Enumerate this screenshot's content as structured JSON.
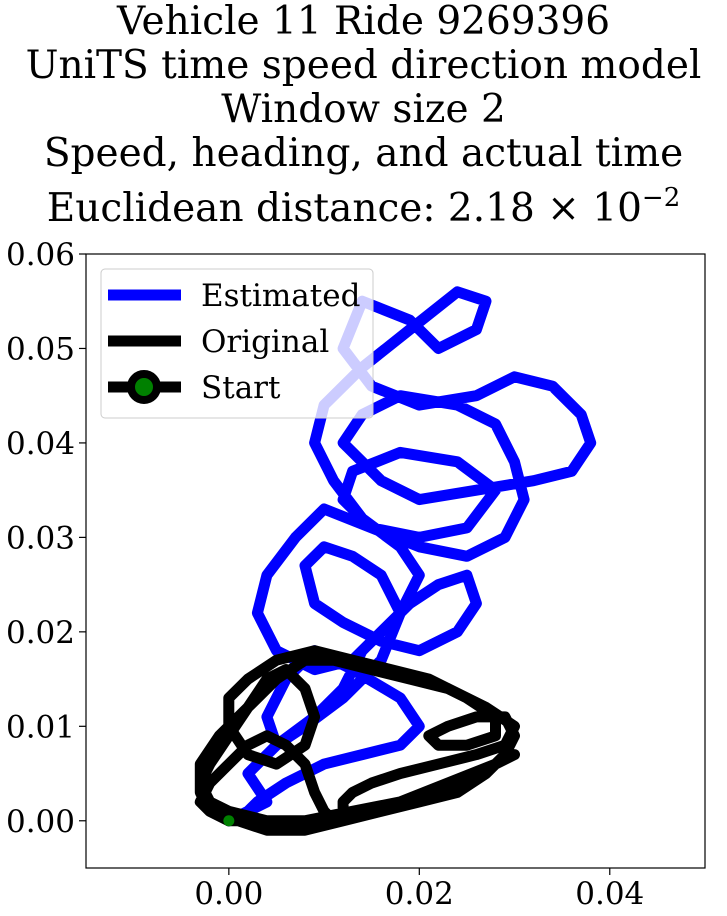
{
  "chart_data": {
    "type": "line",
    "title_lines": [
      "Vehicle 11 Ride 9269396",
      "UniTS time speed direction model",
      "Window size 2",
      "Speed, heading, and actual time"
    ],
    "distance_label": "Euclidean distance:",
    "distance_mantissa": "2.18",
    "distance_times": "×",
    "distance_base": "10",
    "distance_exponent": "−2",
    "xlim": [
      -0.015,
      0.05
    ],
    "ylim": [
      -0.005,
      0.06
    ],
    "xticks": [
      0.0,
      0.02,
      0.04
    ],
    "xtick_labels": [
      "0.00",
      "0.02",
      "0.04"
    ],
    "yticks": [
      0.0,
      0.01,
      0.02,
      0.03,
      0.04,
      0.05,
      0.06
    ],
    "ytick_labels": [
      "0.00",
      "0.01",
      "0.02",
      "0.03",
      "0.04",
      "0.05",
      "0.06"
    ],
    "grid": false,
    "legend_position": "top-left",
    "series": [
      {
        "name": "Estimated",
        "color": "#0000ff",
        "x": [
          0.0,
          0.004,
          0.002,
          0.005,
          0.009,
          0.012,
          0.014,
          0.018,
          0.02,
          0.018,
          0.014,
          0.011,
          0.009,
          0.01,
          0.014,
          0.019,
          0.024,
          0.027,
          0.026,
          0.022,
          0.019,
          0.014,
          0.012,
          0.015,
          0.02,
          0.026,
          0.03,
          0.034,
          0.037,
          0.038,
          0.036,
          0.032,
          0.026,
          0.02,
          0.016,
          0.012,
          0.014,
          0.018,
          0.024,
          0.028,
          0.03,
          0.031,
          0.029,
          0.025,
          0.02,
          0.015,
          0.012,
          0.013,
          0.018,
          0.024,
          0.028,
          0.025,
          0.02,
          0.015,
          0.01,
          0.007,
          0.004,
          0.003,
          0.005,
          0.009,
          0.013,
          0.016,
          0.019,
          0.022,
          0.025,
          0.026,
          0.024,
          0.02,
          0.016,
          0.012,
          0.009,
          0.008,
          0.01,
          0.013,
          0.016,
          0.018,
          0.016,
          0.012,
          0.008,
          0.005,
          0.004,
          0.006,
          0.009,
          0.013,
          0.018,
          0.02,
          0.018,
          0.014,
          0.01,
          0.006,
          0.003,
          0.002
        ],
        "y": [
          0.0,
          0.002,
          0.005,
          0.008,
          0.011,
          0.014,
          0.018,
          0.022,
          0.026,
          0.029,
          0.032,
          0.036,
          0.04,
          0.044,
          0.048,
          0.052,
          0.056,
          0.055,
          0.052,
          0.05,
          0.053,
          0.055,
          0.05,
          0.046,
          0.044,
          0.045,
          0.047,
          0.046,
          0.043,
          0.04,
          0.037,
          0.036,
          0.035,
          0.034,
          0.036,
          0.04,
          0.043,
          0.045,
          0.044,
          0.042,
          0.038,
          0.034,
          0.03,
          0.028,
          0.029,
          0.031,
          0.034,
          0.037,
          0.039,
          0.038,
          0.035,
          0.031,
          0.03,
          0.031,
          0.033,
          0.03,
          0.026,
          0.022,
          0.018,
          0.016,
          0.017,
          0.02,
          0.023,
          0.025,
          0.026,
          0.023,
          0.02,
          0.018,
          0.019,
          0.021,
          0.023,
          0.027,
          0.029,
          0.028,
          0.026,
          0.022,
          0.017,
          0.013,
          0.01,
          0.008,
          0.011,
          0.015,
          0.018,
          0.016,
          0.013,
          0.01,
          0.008,
          0.007,
          0.006,
          0.004,
          0.002,
          0.001
        ]
      },
      {
        "name": "Original",
        "color": "#000000",
        "x": [
          0.0,
          -0.002,
          -0.003,
          -0.003,
          -0.001,
          0.002,
          0.005,
          0.008,
          0.011,
          0.015,
          0.019,
          0.023,
          0.027,
          0.03,
          0.029,
          0.026,
          0.022,
          0.018,
          0.015,
          0.013,
          0.012,
          0.012,
          0.011,
          0.01,
          0.009,
          0.008,
          0.006,
          0.004,
          0.002,
          0.0,
          -0.002,
          -0.003,
          -0.002,
          0.001,
          0.004,
          0.008,
          0.012,
          0.016,
          0.02,
          0.024,
          0.027,
          0.029,
          0.03,
          0.029,
          0.026,
          0.023,
          0.021,
          0.022,
          0.025,
          0.028,
          0.028,
          0.025,
          0.021,
          0.017,
          0.013,
          0.009,
          0.005,
          0.002,
          0.0,
          0.0,
          0.002,
          0.005,
          0.008,
          0.009,
          0.008,
          0.006,
          0.004,
          0.002,
          0.0,
          -0.002,
          -0.003,
          -0.002,
          0.0,
          0.004,
          0.009,
          0.014,
          0.019,
          0.024,
          0.028,
          0.03,
          0.028,
          0.023,
          0.018,
          0.013,
          0.008,
          0.004,
          0.001,
          0.0
        ],
        "y": [
          0.0,
          0.001,
          0.003,
          0.006,
          0.009,
          0.012,
          0.015,
          0.017,
          0.017,
          0.016,
          0.015,
          0.014,
          0.012,
          0.01,
          0.008,
          0.007,
          0.006,
          0.005,
          0.004,
          0.003,
          0.002,
          0.001,
          0.0,
          0.001,
          0.003,
          0.006,
          0.008,
          0.009,
          0.008,
          0.006,
          0.004,
          0.002,
          0.001,
          0.0,
          -0.001,
          -0.001,
          0.0,
          0.001,
          0.002,
          0.003,
          0.005,
          0.007,
          0.009,
          0.011,
          0.011,
          0.01,
          0.009,
          0.008,
          0.008,
          0.009,
          0.011,
          0.013,
          0.015,
          0.016,
          0.017,
          0.018,
          0.017,
          0.015,
          0.013,
          0.01,
          0.007,
          0.006,
          0.008,
          0.011,
          0.014,
          0.016,
          0.015,
          0.012,
          0.009,
          0.006,
          0.004,
          0.002,
          0.001,
          0.0,
          0.0,
          0.001,
          0.002,
          0.004,
          0.006,
          0.007,
          0.006,
          0.004,
          0.002,
          0.001,
          0.0,
          -0.001,
          0.0,
          0.0
        ]
      },
      {
        "name": "Start",
        "type": "marker",
        "color": "#000000",
        "fill": "#008000",
        "x": [
          0.0
        ],
        "y": [
          0.0
        ]
      }
    ]
  }
}
